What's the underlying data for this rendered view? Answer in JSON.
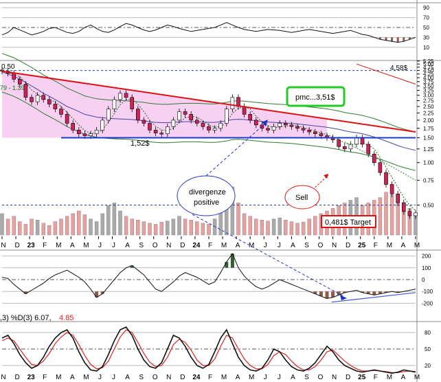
{
  "chart_data": {
    "type": "line",
    "price_panel": {
      "y_ticks": [
        "5.25",
        "5.00",
        "4.75",
        "4.50",
        "4.25",
        "4.00",
        "3.75",
        "3.50",
        "3.25",
        "3.00",
        "2.75",
        "2.50",
        "2.25",
        "2.00",
        "1.75",
        "1.50",
        "1.25",
        "1.00",
        "0.75",
        "0.50"
      ],
      "ylim": [
        0.3,
        5.3
      ],
      "scale": "log",
      "x_labels": [
        "N",
        "D",
        "23",
        "F",
        "M",
        "A",
        "M",
        "J",
        "J",
        "A",
        "S",
        "O",
        "N",
        "D",
        "24",
        "F",
        "M",
        "A",
        "M",
        "J",
        "J",
        "A",
        "S",
        "O",
        "N",
        "D",
        "25",
        "F",
        "M",
        "A",
        "M"
      ],
      "close": [
        4.45,
        4.3,
        3.9,
        3.6,
        2.9,
        2.7,
        3.0,
        2.8,
        2.6,
        2.4,
        2.2,
        1.9,
        1.7,
        1.6,
        1.55,
        1.6,
        1.7,
        2.0,
        2.4,
        2.8,
        3.1,
        2.9,
        2.4,
        2.0,
        1.9,
        1.7,
        1.62,
        1.6,
        1.8,
        2.0,
        2.3,
        2.2,
        2.0,
        1.9,
        1.8,
        1.7,
        1.75,
        1.9,
        2.4,
        2.9,
        2.5,
        2.2,
        2.0,
        1.85,
        1.75,
        1.7,
        1.8,
        1.9,
        1.85,
        1.8,
        1.75,
        1.7,
        1.65,
        1.6,
        1.55,
        1.5,
        1.45,
        1.3,
        1.25,
        1.35,
        1.5,
        1.35,
        1.15,
        1.0,
        0.85,
        0.7,
        0.6,
        0.52,
        0.45,
        0.42,
        0.44
      ],
      "ma_long": [
        4.4,
        4.25,
        4.1,
        3.9,
        3.7,
        3.5,
        3.3,
        3.1,
        2.95,
        2.8,
        2.65,
        2.5,
        2.4,
        2.3,
        2.2,
        2.15,
        2.1,
        2.08,
        2.06,
        2.05,
        2.04,
        2.03,
        2.02,
        2.0,
        1.98,
        1.95,
        1.93,
        1.92,
        1.92,
        1.93,
        1.94,
        1.95,
        1.95,
        1.95,
        1.94,
        1.93,
        1.93,
        1.95,
        1.98,
        2.02,
        2.03,
        2.02,
        2.0,
        1.98,
        1.96,
        1.94,
        1.93,
        1.92,
        1.91,
        1.9,
        1.88,
        1.86,
        1.84,
        1.82,
        1.8,
        1.78,
        1.75,
        1.72,
        1.68,
        1.65,
        1.63,
        1.6,
        1.56,
        1.52,
        1.47,
        1.42,
        1.37,
        1.32,
        1.28,
        1.25,
        1.22
      ],
      "volume": [
        40,
        30,
        35,
        25,
        20,
        30,
        28,
        22,
        18,
        25,
        30,
        35,
        40,
        45,
        38,
        30,
        25,
        40,
        55,
        60,
        45,
        35,
        30,
        28,
        25,
        22,
        20,
        24,
        26,
        30,
        35,
        30,
        28,
        25,
        22,
        20,
        30,
        45,
        70,
        90,
        60,
        40,
        35,
        30,
        28,
        26,
        30,
        32,
        28,
        25,
        22,
        24,
        30,
        35,
        40,
        45,
        50,
        55,
        60,
        65,
        70,
        55,
        60,
        65,
        70,
        80,
        75,
        70,
        60,
        50,
        40
      ],
      "annotations": [
        "0.50",
        "79 - 1.39",
        "1,52$",
        "pmc...3,51$",
        "4,58$",
        "divergenze positive",
        "Sell",
        "0,481$ Target"
      ]
    },
    "rsi_panel": {
      "y_ticks": [
        "90",
        "70",
        "50",
        "30",
        "10"
      ],
      "ylim": [
        0,
        100
      ],
      "values": [
        35,
        40,
        50,
        45,
        40,
        35,
        38,
        42,
        48,
        50,
        45,
        40,
        38,
        42,
        50,
        55,
        48,
        42,
        40,
        45,
        52,
        58,
        55,
        50,
        45,
        42,
        45,
        50,
        55,
        52,
        48,
        45,
        42,
        44,
        46,
        48,
        50,
        55,
        60,
        55,
        50,
        46,
        44,
        42,
        44,
        46,
        45,
        44,
        42,
        40,
        42,
        44,
        46,
        44,
        42,
        40,
        38,
        40,
        42,
        44,
        40,
        36,
        34,
        30,
        26,
        24,
        22,
        20,
        22,
        26,
        30
      ]
    },
    "cci_panel": {
      "y_ticks": [
        "200",
        "100",
        "0",
        "-100",
        "-200"
      ],
      "ylim": [
        -250,
        250
      ],
      "values": [
        20,
        10,
        -40,
        -80,
        -120,
        -90,
        -60,
        -30,
        10,
        40,
        60,
        80,
        50,
        20,
        -20,
        -80,
        -150,
        -120,
        -60,
        0,
        60,
        100,
        120,
        80,
        40,
        -20,
        -80,
        -100,
        -60,
        -20,
        30,
        60,
        40,
        20,
        -10,
        -40,
        -20,
        60,
        150,
        220,
        100,
        30,
        -20,
        -60,
        -80,
        -60,
        -30,
        0,
        -20,
        -40,
        -60,
        -80,
        -100,
        -120,
        -140,
        -160,
        -150,
        -130,
        -110,
        -100,
        -90,
        -110,
        -120,
        -130,
        -120,
        -110,
        -100,
        -110,
        -100,
        -90,
        -80
      ],
      "label": "divergenze positive"
    },
    "stoch_panel": {
      "label": ",3) %D(3) 6.07,",
      "label_value": "4.85",
      "y_ticks": [
        "80",
        "50",
        "20"
      ],
      "ylim": [
        0,
        100
      ],
      "k": [
        70,
        75,
        60,
        40,
        25,
        15,
        20,
        35,
        55,
        70,
        80,
        85,
        70,
        45,
        25,
        12,
        10,
        18,
        40,
        65,
        85,
        90,
        75,
        50,
        30,
        18,
        15,
        25,
        50,
        75,
        70,
        55,
        35,
        20,
        15,
        22,
        45,
        70,
        85,
        60,
        35,
        20,
        12,
        10,
        15,
        30,
        50,
        45,
        30,
        18,
        12,
        10,
        15,
        25,
        40,
        55,
        45,
        30,
        20,
        15,
        10,
        8,
        10,
        12,
        10,
        8,
        6,
        8,
        12,
        10,
        8
      ],
      "d": [
        65,
        70,
        65,
        50,
        35,
        22,
        20,
        28,
        42,
        60,
        72,
        80,
        75,
        58,
        38,
        22,
        14,
        16,
        28,
        50,
        72,
        85,
        80,
        62,
        42,
        26,
        18,
        20,
        35,
        58,
        68,
        62,
        48,
        30,
        20,
        20,
        32,
        55,
        75,
        70,
        50,
        32,
        20,
        14,
        14,
        22,
        38,
        45,
        40,
        28,
        18,
        12,
        12,
        18,
        30,
        45,
        48,
        38,
        28,
        20,
        14,
        10,
        10,
        11,
        10,
        9,
        7,
        7,
        9,
        10,
        9
      ]
    },
    "series": [
      {
        "name": "",
        "color": "#cc2255"
      },
      {
        "name": "",
        "color": "#4444aa"
      }
    ],
    "colors": {
      "trendline": "#dd1111",
      "support": "#1a3acc",
      "band_fill": "#f6c8f0",
      "bollinger": "#2f7a2f",
      "candle_up": "#ffffff",
      "candle_down": "#cc2255",
      "vol_up": "#aaaaaa",
      "vol_down": "#e8a0a0",
      "oscillator": "#111111",
      "stoch_d": "#dd2222",
      "pmc_box": "#22cc22",
      "target_box": "#dd1111"
    }
  }
}
